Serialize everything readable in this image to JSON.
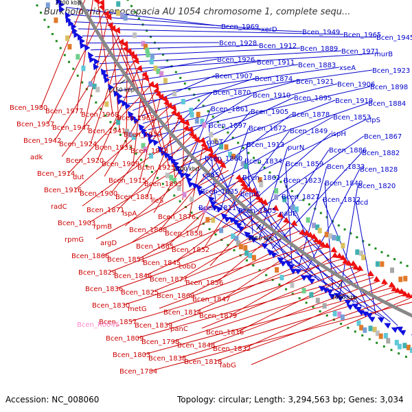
{
  "title": "Burkholderia cenocepacia AU 1054 chromosome 1, complete sequ...",
  "footer": {
    "accession": "Accession: NC_008060",
    "topology": "Topology: circular; Length: 3,294,563 bp; Genes: 3,034"
  },
  "colors": {
    "forward_label": "#0000cc",
    "reverse_label": "#cc0000",
    "rna_label": "#ff88cc",
    "backbone": "#888888"
  },
  "kbp_ticks": [
    "2200 kbp",
    "2150 kbp",
    "2100 kbp",
    "2050 kbp",
    "2000 kbp",
    "1950 kbp"
  ],
  "forward_labels": [
    "Bcen_1969",
    "xerD",
    "Bcen_1949",
    "Bcen_1965",
    "Bcen_1945",
    "Bcen_1928",
    "Bcen_1912",
    "Bcen_1889",
    "Bcen_1971",
    "murB",
    "Bcen_1926",
    "Bcen_1911",
    "Bcen_1883",
    "xseA",
    "Bcen_1923",
    "Bcen_1907",
    "Bcen_1874",
    "Bcen_1921",
    "Bcen_1906",
    "Bcen_1898",
    "Bcen_1870",
    "Bcen_1910",
    "Bcen_1895",
    "Bcen_1919",
    "Bcen_1884",
    "Bcen_1861",
    "Bcen_1905",
    "Bcen_1878",
    "Bcen_1853",
    "clpS",
    "Bcen_1897",
    "Bcen_1872",
    "Bcen_1849",
    "ispH",
    "Bcen_1867",
    "cobT",
    "Bcen_1913",
    "purN",
    "Bcen_1886",
    "Bcen_1882",
    "Bcen_1860",
    "Bcen_1834",
    "Bcen_1859",
    "Bcen_1833",
    "Bcen_1828",
    "cobS",
    "Bcen_1862",
    "Bcen_1823",
    "Bcen_1840",
    "Bcen_1820",
    "Bcen_1835",
    "hemC",
    "Bcen_1827",
    "Bcen_1812",
    "dcd",
    "Bcen_1811",
    "Bcen_1805",
    "nadE"
  ],
  "reverse_labels": [
    "Bcen_1980",
    "Bcen_1977",
    "Bcen_1968",
    "Bcen_1963",
    "Bcen_1957",
    "Bcen_1947",
    "Bcen_1941",
    "Bcen_1930",
    "Bcen_1942",
    "Bcen_1924",
    "Bcen_1933",
    "Bcen_1918",
    "adk",
    "Bcen_1920",
    "Bcen_1909",
    "Bcen_1925",
    "Bcen_1914",
    "dut",
    "Bcen_1915",
    "Bcen_1893",
    "Bcen_1916",
    "Bcen_1900",
    "Bcen_1881",
    "ileS",
    "radC",
    "Bcen_1871",
    "lspA",
    "Bcen_1876",
    "Bcen_1903",
    "rpmB",
    "Bcen_1868",
    "Bcen_1858",
    "rpmG",
    "argD",
    "Bcen_1865",
    "Bcen_1852",
    "Bcen_1866",
    "Bcen_1851",
    "Bcen_1845",
    "cobD",
    "Bcen_1829",
    "Bcen_1846",
    "Bcen_1877",
    "Bcen_1856",
    "Bcen_1836",
    "Bcen_1825",
    "Bcen_1869",
    "Bcen_1847",
    "Bcen_1830",
    "metG",
    "Bcen_1814",
    "Bcen_1879",
    "Bcen_1857",
    "Bcen_1839",
    "panC",
    "Bcen_1816",
    "Bcen_1809",
    "Bcen_1798",
    "Bcen_1848",
    "Bcen_1832",
    "Bcen_1803",
    "Bcen_1838",
    "Bcen_1818",
    "fabG",
    "Bcen_1784"
  ],
  "rna_labels": [
    "Bcen_R0045"
  ]
}
